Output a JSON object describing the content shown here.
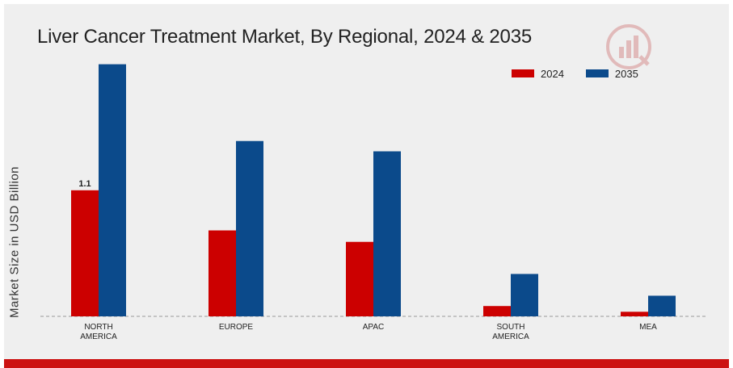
{
  "chart_data": {
    "type": "bar",
    "title": "Liver Cancer Treatment Market, By Regional, 2024 & 2035",
    "xlabel": "",
    "ylabel": "Market Size in USD Billion",
    "categories": [
      "NORTH\nAMERICA",
      "EUROPE",
      "APAC",
      "SOUTH\nAMERICA",
      "MEA"
    ],
    "series": [
      {
        "name": "2024",
        "color": "#cc0000",
        "values": [
          1.1,
          0.75,
          0.65,
          0.09,
          0.04
        ]
      },
      {
        "name": "2035",
        "color": "#0b4a8b",
        "values": [
          2.2,
          1.53,
          1.44,
          0.37,
          0.18
        ]
      }
    ],
    "data_labels": [
      {
        "series": 0,
        "index": 0,
        "text": "1.1"
      }
    ],
    "ylim": [
      0,
      3.2
    ],
    "grid": false,
    "baseline": "dashed",
    "legend_position": "top-right"
  },
  "colors": {
    "background": "#efefef",
    "bottom_bar": "#cc1111"
  },
  "logo": {
    "icon": "market-research-logo-icon"
  }
}
